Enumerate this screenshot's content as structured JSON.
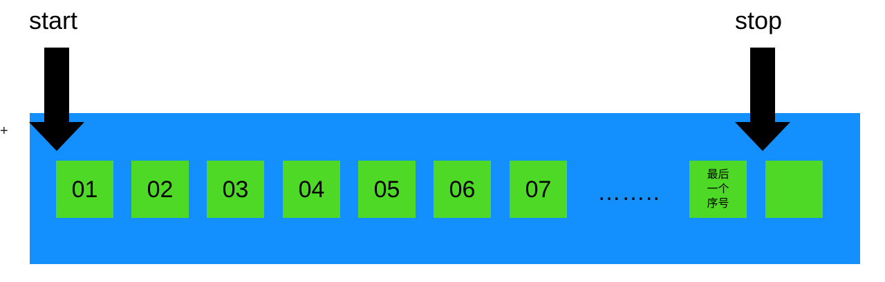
{
  "labels": {
    "start": "start",
    "stop": "stop",
    "edge_mark": "+"
  },
  "cells": [
    {
      "text": "01"
    },
    {
      "text": "02"
    },
    {
      "text": "03"
    },
    {
      "text": "04"
    },
    {
      "text": "05"
    },
    {
      "text": "06"
    },
    {
      "text": "07"
    }
  ],
  "ellipsis": "……..",
  "last_cell": {
    "text": "最后\n一个\n序号"
  },
  "stop_cell": {
    "text": ""
  },
  "colors": {
    "track": "#138ffe",
    "cell": "#4fd927",
    "arrow": "#000000",
    "text": "#000000"
  }
}
